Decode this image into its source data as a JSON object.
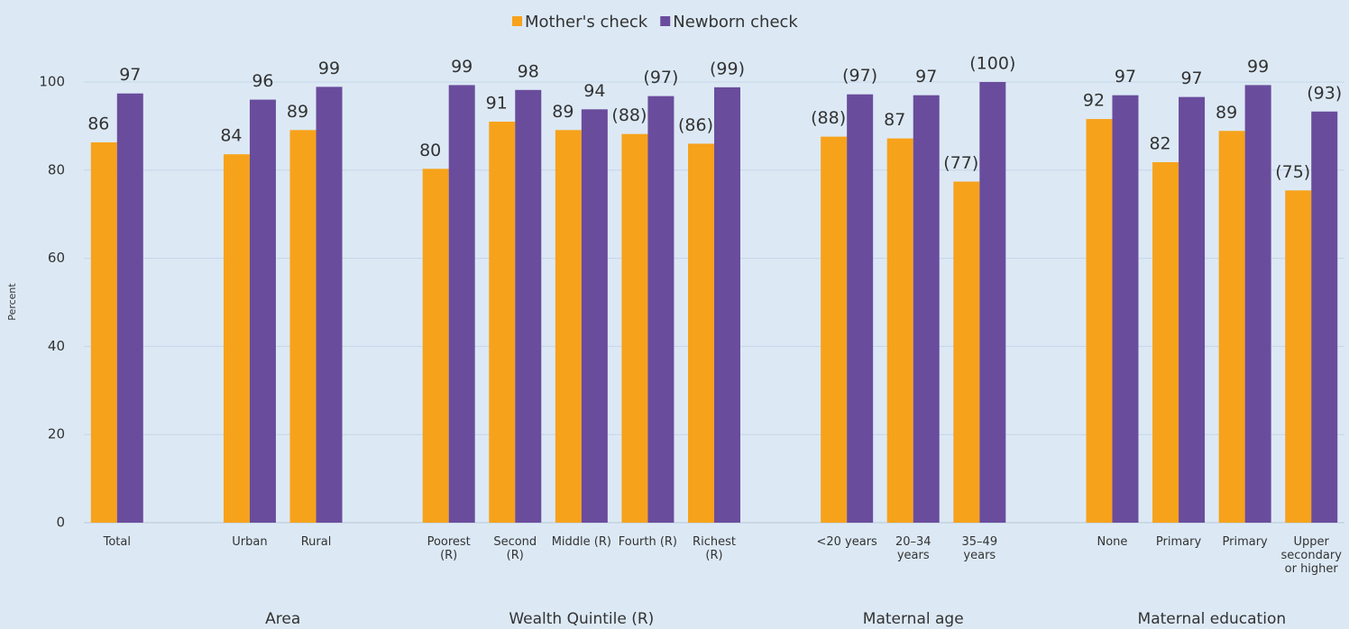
{
  "chart_data": {
    "type": "bar",
    "y_label": "Percent",
    "categories": [
      "Total",
      null,
      "Urban",
      "Rural",
      null,
      "Poorest (R)",
      "Second (R)",
      "Middle (R)",
      "Fourth (R)",
      "Richest (R)",
      null,
      "<20 years",
      "20–34 years",
      "35–49 years",
      null,
      "None",
      "Primary",
      "Primary",
      "Upper secondary or higher"
    ],
    "series": [
      {
        "name": "Mother's check",
        "color": "#f7a21b",
        "values": [
          86.3,
          null,
          83.6,
          89.1,
          null,
          80.3,
          91.0,
          89.1,
          88.2,
          86.0,
          null,
          87.6,
          87.2,
          77.4,
          null,
          91.6,
          81.8,
          88.9,
          75.4
        ],
        "value_labels": [
          "86",
          null,
          "84",
          "89",
          null,
          "80",
          "91",
          "89",
          "(88)",
          "(86)",
          null,
          "(88)",
          "87",
          "(77)",
          null,
          "92",
          "82",
          "89",
          "(75)"
        ]
      },
      {
        "name": "Newborn check",
        "color": "#6a4c9c",
        "values": [
          97.4,
          null,
          96.0,
          98.9,
          null,
          99.3,
          98.2,
          93.8,
          96.8,
          98.8,
          null,
          97.2,
          97.0,
          100,
          null,
          97.0,
          96.6,
          99.3,
          93.3
        ],
        "value_labels": [
          "97",
          null,
          "96",
          "99",
          null,
          "99",
          "98",
          "94",
          "(97)",
          "(99)",
          null,
          "(97)",
          "97",
          "(100)",
          null,
          "97",
          "97",
          "99",
          "(93)"
        ]
      }
    ],
    "groups": [
      {
        "name": "Area",
        "span": [
          2,
          3
        ]
      },
      {
        "name": "Wealth Quintile (R)",
        "span": [
          5,
          9
        ]
      },
      {
        "name": "Maternal age",
        "span": [
          11,
          13
        ]
      },
      {
        "name": "Maternal education",
        "span": [
          15,
          18
        ]
      }
    ],
    "ylim": [
      0,
      100
    ],
    "yticks": [
      0,
      20,
      40,
      60,
      80,
      100
    ],
    "grid": true,
    "legend": "top"
  }
}
